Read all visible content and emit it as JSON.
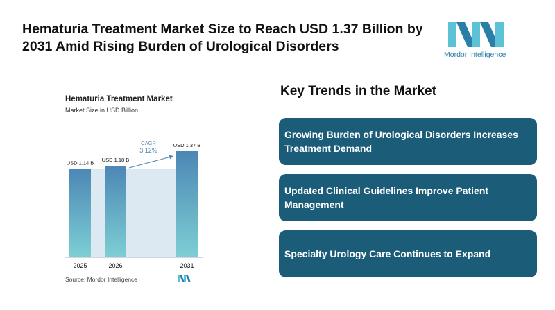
{
  "headline": "Hematuria Treatment Market Size to Reach USD 1.37 Billion by 2031 Amid Rising Burden of Urological Disorders",
  "brand": {
    "name": "Mordor Intelligence",
    "colors": {
      "teal": "#5cc3d6",
      "blue": "#2a7fa6",
      "dark": "#1b5c79"
    }
  },
  "chart_data": {
    "type": "bar",
    "title": "Hematuria Treatment Market",
    "subtitle": "Market Size in USD Billion",
    "categories": [
      "2025",
      "2026",
      "2031"
    ],
    "values": [
      1.14,
      1.18,
      1.37
    ],
    "data_labels": [
      "USD 1.14 B",
      "USD 1.18 B",
      "USD 1.37 B"
    ],
    "cagr_label": "CAGR",
    "cagr_value": "3.12%",
    "source": "Source: Mordor Intelligence",
    "bar_gradient": {
      "top": "#4d87b5",
      "bottom": "#7dcfd4"
    },
    "band_color": "#dde9f2",
    "grid": false
  },
  "trends": {
    "title": "Key Trends in the Market",
    "items": [
      {
        "label": "Growing Burden of Urological Disorders Increases Treatment Demand"
      },
      {
        "label": "Updated Clinical Guidelines Improve Patient Management"
      },
      {
        "label": "Specialty Urology Care Continues to Expand"
      }
    ]
  }
}
